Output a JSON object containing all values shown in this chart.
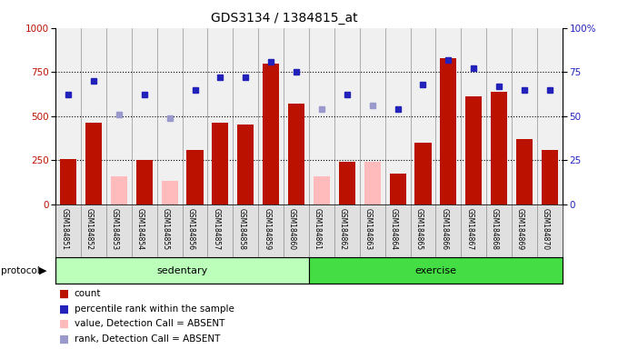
{
  "title": "GDS3134 / 1384815_at",
  "samples": [
    "GSM184851",
    "GSM184852",
    "GSM184853",
    "GSM184854",
    "GSM184855",
    "GSM184856",
    "GSM184857",
    "GSM184858",
    "GSM184859",
    "GSM184860",
    "GSM184861",
    "GSM184862",
    "GSM184863",
    "GSM184864",
    "GSM184865",
    "GSM184866",
    "GSM184867",
    "GSM184868",
    "GSM184869",
    "GSM184870"
  ],
  "red_bars": [
    255,
    460,
    0,
    250,
    0,
    310,
    460,
    450,
    800,
    570,
    0,
    240,
    0,
    175,
    350,
    830,
    610,
    640,
    370,
    305
  ],
  "pink_bars": [
    0,
    0,
    160,
    0,
    130,
    0,
    0,
    0,
    0,
    0,
    160,
    0,
    240,
    0,
    0,
    0,
    0,
    0,
    0,
    0
  ],
  "blue_dots": [
    62,
    70,
    0,
    62,
    0,
    65,
    72,
    72,
    81,
    75,
    0,
    62,
    0,
    54,
    68,
    82,
    77,
    67,
    65,
    65
  ],
  "lblue_dots": [
    0,
    0,
    51,
    0,
    49,
    0,
    0,
    0,
    0,
    0,
    54,
    0,
    56,
    0,
    0,
    0,
    0,
    0,
    0,
    0
  ],
  "sedentary_count": 10,
  "bar_color_red": "#bb1100",
  "bar_color_pink": "#ffbbbb",
  "dot_color_blue": "#2222bb",
  "dot_color_lblue": "#9999cc",
  "green_light": "#bbffbb",
  "green_bright": "#44dd44",
  "bg_color": "#ffffff"
}
